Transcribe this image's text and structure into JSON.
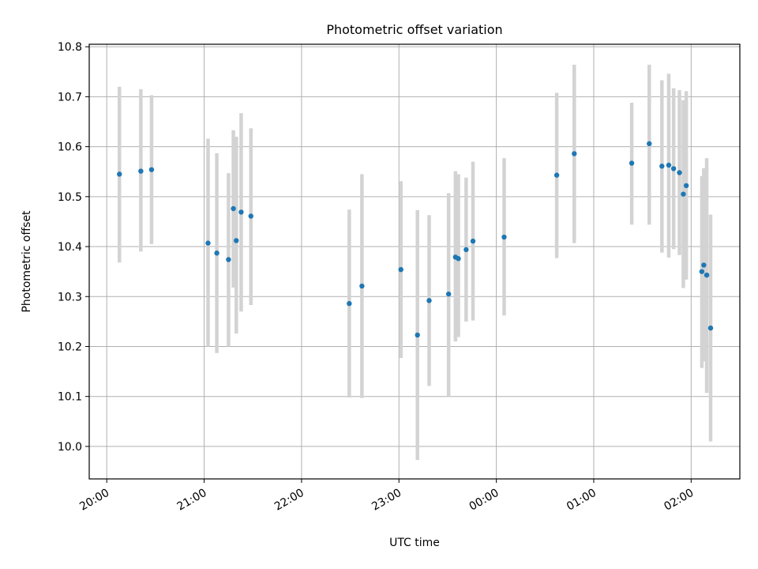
{
  "chart_data": {
    "type": "scatter",
    "title": "Photometric offset variation",
    "xlabel": "UTC time",
    "ylabel": "Photometric offset",
    "x_tick_labels": [
      "20:00",
      "21:00",
      "22:00",
      "23:00",
      "00:00",
      "01:00",
      "02:00"
    ],
    "y_tick_labels": [
      "10.0",
      "10.1",
      "10.2",
      "10.3",
      "10.4",
      "10.5",
      "10.6",
      "10.7",
      "10.8"
    ],
    "x_ticks_hours": [
      0,
      1,
      2,
      3,
      4,
      5,
      6
    ],
    "y_ticks": [
      10.0,
      10.1,
      10.2,
      10.3,
      10.4,
      10.5,
      10.6,
      10.7,
      10.8
    ],
    "xlim_hours": [
      -0.18,
      6.5
    ],
    "ylim": [
      9.935,
      10.805
    ],
    "grid": true,
    "colors": {
      "point": "#1f77b4",
      "errorbar": "#d3d3d3",
      "grid": "#b0b0b0"
    },
    "points": [
      {
        "t": 0.13,
        "y": 10.545,
        "lo": 10.368,
        "hi": 10.72
      },
      {
        "t": 0.35,
        "y": 10.551,
        "lo": 10.39,
        "hi": 10.715
      },
      {
        "t": 0.46,
        "y": 10.554,
        "lo": 10.405,
        "hi": 10.703
      },
      {
        "t": 1.04,
        "y": 10.407,
        "lo": 10.2,
        "hi": 10.616
      },
      {
        "t": 1.13,
        "y": 10.387,
        "lo": 10.187,
        "hi": 10.587
      },
      {
        "t": 1.25,
        "y": 10.374,
        "lo": 10.2,
        "hi": 10.547
      },
      {
        "t": 1.3,
        "y": 10.476,
        "lo": 10.318,
        "hi": 10.633
      },
      {
        "t": 1.33,
        "y": 10.412,
        "lo": 10.226,
        "hi": 10.62
      },
      {
        "t": 1.38,
        "y": 10.469,
        "lo": 10.27,
        "hi": 10.667
      },
      {
        "t": 1.48,
        "y": 10.461,
        "lo": 10.283,
        "hi": 10.637
      },
      {
        "t": 2.49,
        "y": 10.286,
        "lo": 10.098,
        "hi": 10.474
      },
      {
        "t": 2.62,
        "y": 10.321,
        "lo": 10.097,
        "hi": 10.545
      },
      {
        "t": 3.02,
        "y": 10.354,
        "lo": 10.177,
        "hi": 10.531
      },
      {
        "t": 3.19,
        "y": 10.223,
        "lo": 9.973,
        "hi": 10.473
      },
      {
        "t": 3.31,
        "y": 10.292,
        "lo": 10.121,
        "hi": 10.463
      },
      {
        "t": 3.51,
        "y": 10.305,
        "lo": 10.1,
        "hi": 10.507
      },
      {
        "t": 3.58,
        "y": 10.379,
        "lo": 10.21,
        "hi": 10.551
      },
      {
        "t": 3.61,
        "y": 10.376,
        "lo": 10.219,
        "hi": 10.545
      },
      {
        "t": 3.69,
        "y": 10.394,
        "lo": 10.25,
        "hi": 10.538
      },
      {
        "t": 3.76,
        "y": 10.411,
        "lo": 10.252,
        "hi": 10.57
      },
      {
        "t": 4.08,
        "y": 10.419,
        "lo": 10.262,
        "hi": 10.577
      },
      {
        "t": 4.62,
        "y": 10.543,
        "lo": 10.377,
        "hi": 10.708
      },
      {
        "t": 4.8,
        "y": 10.586,
        "lo": 10.407,
        "hi": 10.764
      },
      {
        "t": 5.39,
        "y": 10.567,
        "lo": 10.444,
        "hi": 10.688
      },
      {
        "t": 5.57,
        "y": 10.606,
        "lo": 10.444,
        "hi": 10.764
      },
      {
        "t": 5.7,
        "y": 10.561,
        "lo": 10.388,
        "hi": 10.733
      },
      {
        "t": 5.77,
        "y": 10.563,
        "lo": 10.378,
        "hi": 10.746
      },
      {
        "t": 5.82,
        "y": 10.556,
        "lo": 10.395,
        "hi": 10.717
      },
      {
        "t": 5.88,
        "y": 10.548,
        "lo": 10.383,
        "hi": 10.713
      },
      {
        "t": 5.92,
        "y": 10.505,
        "lo": 10.317,
        "hi": 10.693
      },
      {
        "t": 5.95,
        "y": 10.522,
        "lo": 10.334,
        "hi": 10.711
      },
      {
        "t": 6.11,
        "y": 10.35,
        "lo": 10.157,
        "hi": 10.541
      },
      {
        "t": 6.13,
        "y": 10.363,
        "lo": 10.17,
        "hi": 10.557
      },
      {
        "t": 6.16,
        "y": 10.343,
        "lo": 10.107,
        "hi": 10.577
      },
      {
        "t": 6.2,
        "y": 10.237,
        "lo": 10.01,
        "hi": 10.464
      }
    ]
  }
}
